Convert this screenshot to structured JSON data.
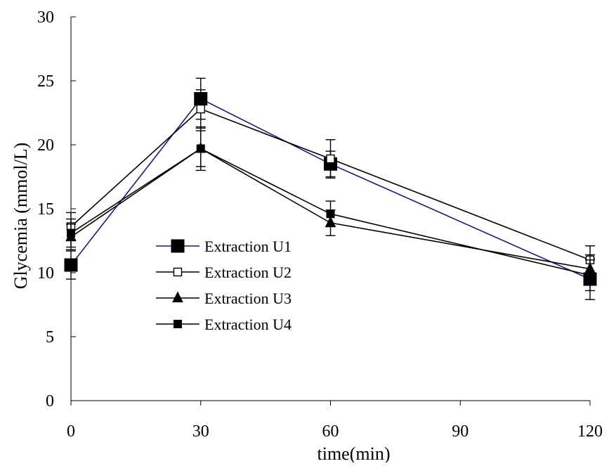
{
  "chart_data": {
    "type": "line",
    "title": "",
    "xlabel": "time(min)",
    "ylabel": "Glycemia (mmol/L)",
    "x": [
      0,
      30,
      60,
      120
    ],
    "xlim": [
      0,
      120
    ],
    "ylim": [
      0,
      30
    ],
    "xticks": [
      0,
      30,
      60,
      90,
      120
    ],
    "yticks": [
      0,
      5,
      10,
      15,
      20,
      25,
      30
    ],
    "grid": false,
    "legend_position": "center-left",
    "series": [
      {
        "name": "Extraction U1",
        "values": [
          10.6,
          23.6,
          18.5,
          9.5
        ],
        "error": [
          1.1,
          1.6,
          1.0,
          1.6
        ],
        "marker": "large-filled-square",
        "color": "#1a1a7a"
      },
      {
        "name": "Extraction U2",
        "values": [
          13.6,
          22.8,
          18.9,
          11.0
        ],
        "error": [
          1.1,
          1.5,
          1.5,
          1.1
        ],
        "marker": "open-square",
        "color": "#000000"
      },
      {
        "name": "Extraction U3",
        "values": [
          12.8,
          19.7,
          13.9,
          10.3
        ],
        "error": [
          1.0,
          1.4,
          1.0,
          1.1
        ],
        "marker": "filled-triangle",
        "color": "#000000"
      },
      {
        "name": "Extraction U4",
        "values": [
          13.1,
          19.7,
          14.6,
          9.8
        ],
        "error": [
          1.1,
          1.7,
          1.0,
          1.2
        ],
        "marker": "small-filled-square",
        "color": "#000000"
      }
    ]
  }
}
